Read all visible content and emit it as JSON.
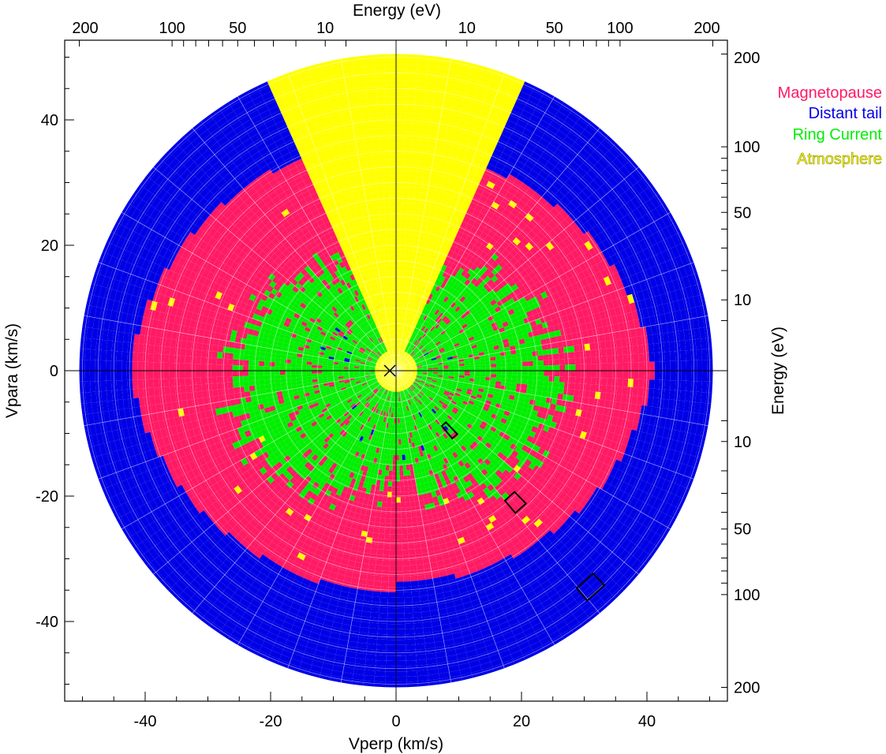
{
  "chart_data": {
    "type": "polar-velocity-map",
    "xlabel": "Vperp (km/s)",
    "ylabel": "Vpara (km/s)",
    "top_axis_label": "Energy (eV)",
    "right_axis_label": "Energy (eV)",
    "xlim": [
      -52,
      52
    ],
    "ylim": [
      -52,
      52
    ],
    "x_ticks": [
      "-40",
      "-20",
      "0",
      "20",
      "40"
    ],
    "y_ticks": [
      "-40",
      "-20",
      "0",
      "20",
      "40"
    ],
    "energy_ticks_top": [
      "200",
      "100",
      "50",
      "10",
      "10",
      "50",
      "100",
      "200"
    ],
    "energy_ticks_right": [
      "200",
      "100",
      "50",
      "10",
      "10",
      "50",
      "100",
      "200"
    ],
    "legend": [
      {
        "name": "Magnetopause",
        "color": "#ff1a64"
      },
      {
        "name": "Distant tail",
        "color": "#0000e6"
      },
      {
        "name": "Ring Current",
        "color": "#00ee00"
      },
      {
        "name": "Atmosphere",
        "color": "#ffff00"
      }
    ],
    "legend_position": "top-right",
    "grid": true,
    "regions": [
      {
        "source": "Atmosphere",
        "component": "loss cone (parallel)",
        "theta_deg": [
          -24,
          24
        ],
        "v_kms": [
          0,
          50.5
        ]
      },
      {
        "source": "Atmosphere",
        "component": "core",
        "theta_deg": [
          0,
          360
        ],
        "v_kms": [
          0,
          3
        ]
      },
      {
        "source": "Ring Current",
        "theta_deg": [
          24,
          336
        ],
        "v_kms": [
          3,
          30
        ],
        "note": "irregular boundary, largest on sides"
      },
      {
        "source": "Magnetopause",
        "theta_deg": [
          24,
          336
        ],
        "v_kms": [
          17,
          42
        ]
      },
      {
        "source": "Distant tail",
        "theta_deg": [
          24,
          336
        ],
        "v_kms": [
          35,
          50.5
        ]
      }
    ],
    "center_marker": {
      "vperp": -1,
      "vpara": 0,
      "symbol": "x"
    },
    "highlighted_bins": [
      {
        "vperp": 8.5,
        "vpara": -9.5
      },
      {
        "vperp": 19.0,
        "vpara": -21.0
      },
      {
        "vperp": 31.0,
        "vpara": -34.5
      }
    ]
  }
}
